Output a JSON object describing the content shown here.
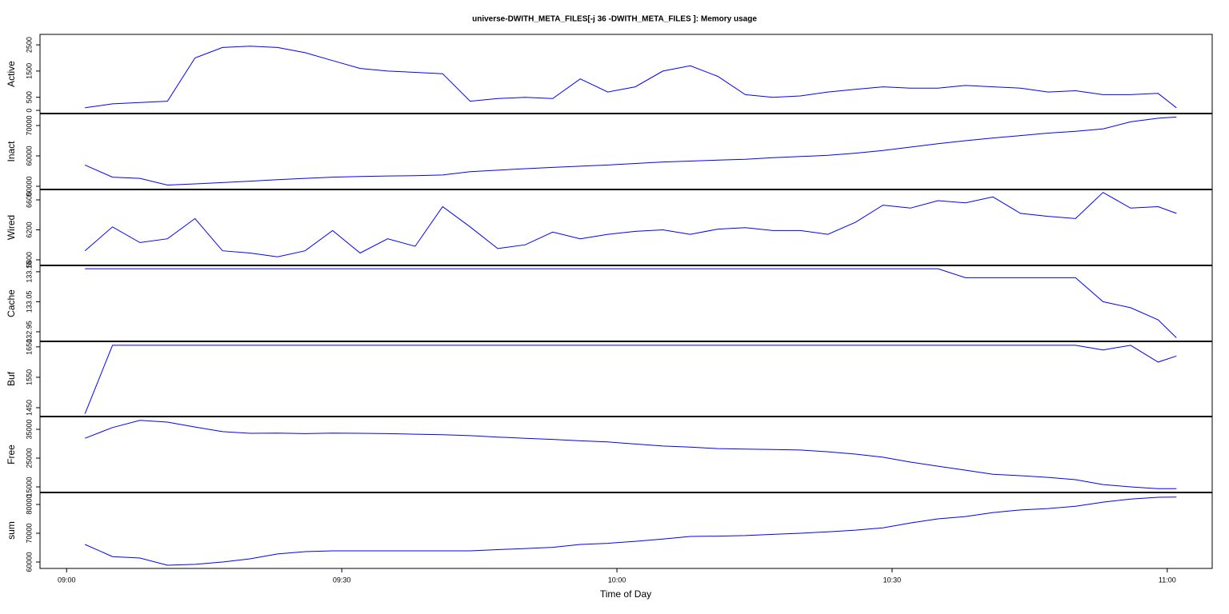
{
  "chart_data": {
    "type": "line",
    "title": "universe-DWITH_META_FILES[-j 36 -DWITH_META_FILES ]: Memory usage",
    "xlabel": "Time of Day",
    "color": "#0000ff",
    "x": [
      542,
      545,
      548,
      551,
      554,
      557,
      560,
      563,
      566,
      569,
      572,
      575,
      578,
      581,
      584,
      587,
      590,
      593,
      596,
      599,
      602,
      605,
      608,
      611,
      614,
      617,
      620,
      623,
      626,
      629,
      632,
      635,
      638,
      641,
      644,
      647,
      650,
      653,
      656,
      659,
      661
    ],
    "xlim": [
      537.1,
      664.9
    ],
    "xticks": [
      {
        "value": 540,
        "label": "09:00"
      },
      {
        "value": 570,
        "label": "09:30"
      },
      {
        "value": 600,
        "label": "10:00"
      },
      {
        "value": 630,
        "label": "10:30"
      },
      {
        "value": 660,
        "label": "11:00"
      }
    ],
    "panels": [
      {
        "ylabel": "Active",
        "ylim": [
          -120,
          2900
        ],
        "yticks": [
          0,
          500,
          1500,
          2500
        ],
        "values": [
          100,
          250,
          300,
          350,
          2000,
          2400,
          2450,
          2400,
          2200,
          1900,
          1600,
          1500,
          1450,
          1400,
          350,
          450,
          500,
          450,
          1200,
          700,
          900,
          1500,
          1700,
          1300,
          600,
          500,
          550,
          700,
          800,
          900,
          850,
          850,
          950,
          900,
          850,
          700,
          750,
          600,
          600,
          650,
          100
        ]
      },
      {
        "ylabel": "Inact",
        "ylim": [
          48950,
          73950
        ],
        "yticks": [
          50000,
          60000,
          70000
        ],
        "values": [
          57000,
          53000,
          52600,
          50400,
          50800,
          51200,
          51700,
          52200,
          52600,
          53000,
          53200,
          53400,
          53500,
          53700,
          54800,
          55300,
          55800,
          56200,
          56600,
          57000,
          57500,
          58000,
          58300,
          58600,
          58900,
          59400,
          59800,
          60200,
          60900,
          61800,
          62900,
          64000,
          65000,
          65900,
          66700,
          67500,
          68100,
          68900,
          71200,
          72400,
          72800
        ]
      },
      {
        "ylabel": "Wired",
        "ylim": [
          5725,
          6739
        ],
        "yticks": [
          5800,
          6200,
          6600
        ],
        "values": [
          5920,
          6240,
          6030,
          6080,
          6350,
          5920,
          5890,
          5840,
          5920,
          6190,
          5890,
          6080,
          5980,
          6510,
          6240,
          5950,
          6000,
          6170,
          6080,
          6140,
          6180,
          6200,
          6140,
          6210,
          6230,
          6190,
          6190,
          6140,
          6300,
          6530,
          6490,
          6590,
          6560,
          6640,
          6420,
          6380,
          6350,
          6700,
          6490,
          6510,
          6420
        ]
      },
      {
        "ylabel": "Cache",
        "ylim": [
          132.918,
          133.171
        ],
        "yticks": [
          132.95,
          133.05,
          133.15
        ],
        "values": [
          133.16,
          133.16,
          133.16,
          133.16,
          133.16,
          133.16,
          133.16,
          133.16,
          133.16,
          133.16,
          133.16,
          133.16,
          133.16,
          133.16,
          133.16,
          133.16,
          133.16,
          133.16,
          133.16,
          133.16,
          133.16,
          133.16,
          133.16,
          133.16,
          133.16,
          133.16,
          133.16,
          133.16,
          133.16,
          133.16,
          133.16,
          133.16,
          133.13,
          133.13,
          133.13,
          133.13,
          133.13,
          133.05,
          133.03,
          132.99,
          132.93
        ]
      },
      {
        "ylabel": "Buf",
        "ylim": [
          1421,
          1668
        ],
        "yticks": [
          1450,
          1550,
          1650
        ],
        "values": [
          1430,
          1655,
          1655,
          1655,
          1655,
          1655,
          1655,
          1655,
          1655,
          1655,
          1655,
          1655,
          1655,
          1655,
          1655,
          1655,
          1655,
          1655,
          1655,
          1655,
          1655,
          1655,
          1655,
          1655,
          1655,
          1655,
          1655,
          1655,
          1655,
          1655,
          1655,
          1655,
          1655,
          1655,
          1655,
          1655,
          1655,
          1640,
          1655,
          1600,
          1620
        ]
      },
      {
        "ylabel": "Free",
        "ylim": [
          13060,
          39440
        ],
        "yticks": [
          15000,
          25000,
          35000
        ],
        "values": [
          31900,
          35600,
          38100,
          37500,
          35800,
          34200,
          33600,
          33700,
          33500,
          33700,
          33600,
          33500,
          33300,
          33100,
          32800,
          32300,
          31900,
          31500,
          31000,
          30600,
          29900,
          29200,
          28800,
          28300,
          28100,
          28000,
          27800,
          27200,
          26400,
          25300,
          23600,
          22200,
          20800,
          19400,
          18900,
          18300,
          17500,
          15800,
          15000,
          14400,
          14400
        ]
      },
      {
        "ylabel": "sum",
        "ylim": [
          57780,
          84170
        ],
        "yticks": [
          60000,
          70000,
          80000
        ],
        "values": [
          66100,
          61900,
          61400,
          58900,
          59200,
          60000,
          61100,
          62800,
          63600,
          63900,
          63900,
          63900,
          63900,
          63900,
          63900,
          64300,
          64700,
          65100,
          66100,
          66500,
          67200,
          68000,
          68900,
          69000,
          69200,
          69600,
          70000,
          70500,
          71100,
          71900,
          73600,
          75000,
          75800,
          77200,
          78100,
          78600,
          79400,
          80800,
          81900,
          82500,
          82600
        ]
      }
    ]
  }
}
